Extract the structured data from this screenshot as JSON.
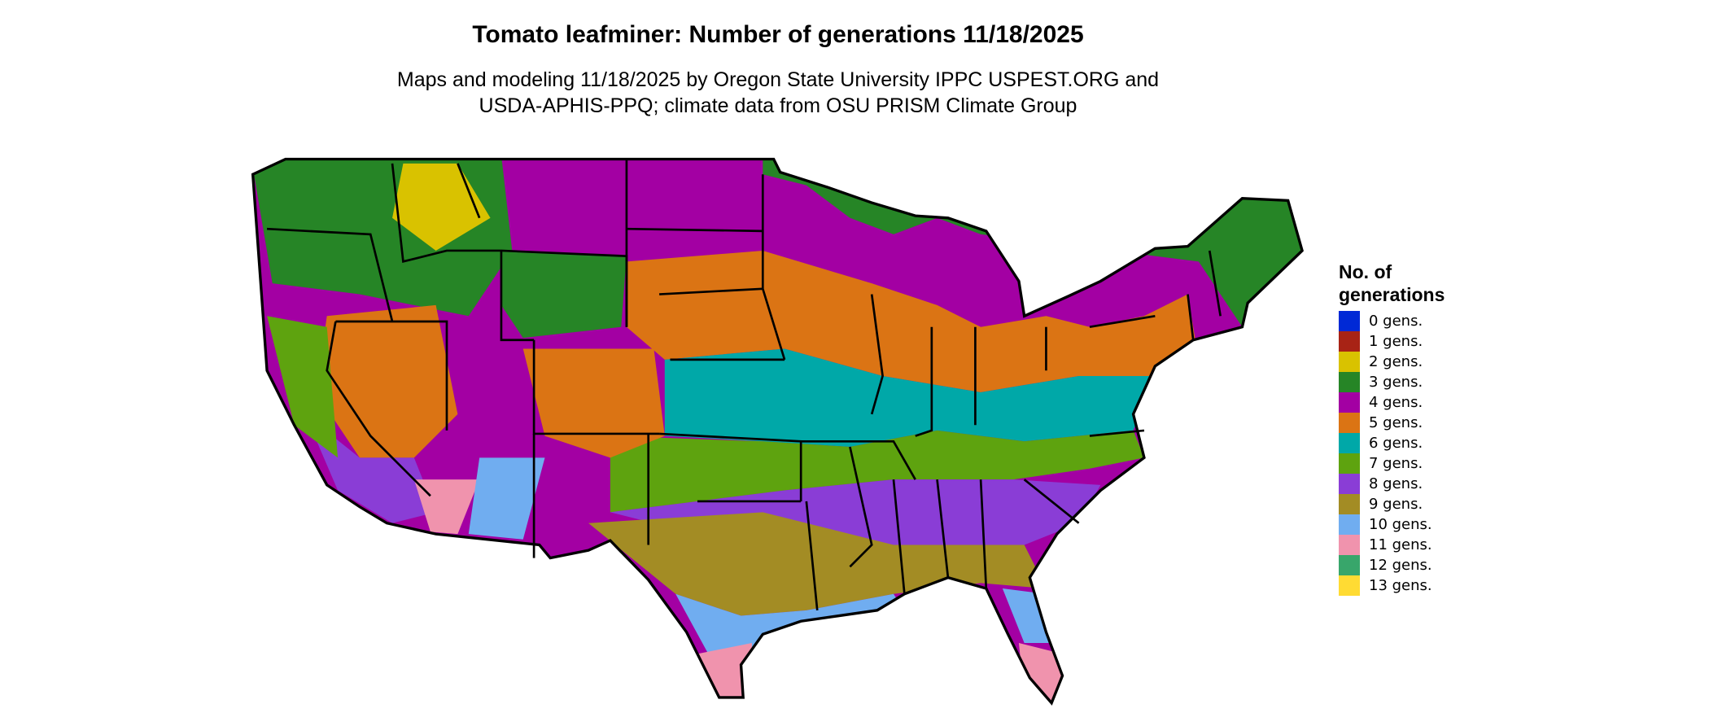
{
  "title": "Tomato leafminer: Number of generations 11/18/2025",
  "subtitle_line1": "Maps and modeling 11/18/2025 by Oregon State University IPPC USPEST.ORG and",
  "subtitle_line2": "USDA-APHIS-PPQ; climate data from OSU PRISM Climate Group",
  "legend": {
    "title_line1": "No. of",
    "title_line2": "generations",
    "items": [
      {
        "label": "0 gens.",
        "color": "#0029D6"
      },
      {
        "label": "1 gens.",
        "color": "#A82315"
      },
      {
        "label": "2 gens.",
        "color": "#D9C200"
      },
      {
        "label": "3 gens.",
        "color": "#268526"
      },
      {
        "label": "4 gens.",
        "color": "#A300A3"
      },
      {
        "label": "5 gens.",
        "color": "#DB7414"
      },
      {
        "label": "6 gens.",
        "color": "#00A8A8"
      },
      {
        "label": "7 gens.",
        "color": "#5EA30F"
      },
      {
        "label": "8 gens.",
        "color": "#8A3DD6"
      },
      {
        "label": "9 gens.",
        "color": "#A38C24"
      },
      {
        "label": "10 gens.",
        "color": "#70ADF0"
      },
      {
        "label": "11 gens.",
        "color": "#F093AD"
      },
      {
        "label": "12 gens.",
        "color": "#38A66B"
      },
      {
        "label": "13 gens.",
        "color": "#FFDB33"
      }
    ]
  }
}
